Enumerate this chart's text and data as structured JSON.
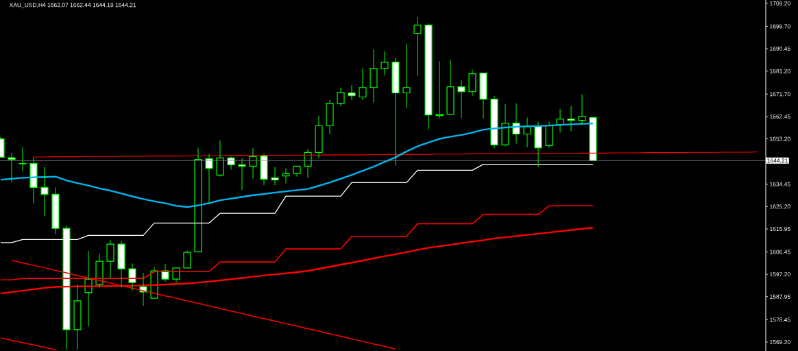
{
  "chart_data": {
    "type": "candlestick",
    "title": "XAU_USD,H4  1662.07 1662.44 1644.19 1644.21",
    "categories": [
      null,
      null,
      null,
      null,
      null,
      null,
      null,
      null,
      null,
      null,
      null,
      null,
      null,
      null,
      null,
      null,
      null,
      null,
      null,
      null,
      null,
      null,
      null,
      null,
      null,
      null,
      null,
      null,
      null,
      null,
      null,
      null,
      null,
      null,
      null,
      null,
      null,
      null,
      null,
      null,
      null,
      null,
      null,
      null,
      null,
      null,
      null,
      null,
      null,
      null,
      null,
      null,
      null,
      null,
      null,
      null,
      null,
      null,
      null,
      null,
      null,
      null,
      null,
      null,
      null,
      null,
      null,
      null,
      null,
      null
    ],
    "color": "#00ff00",
    "ohlc": [
      [
        1653.2,
        1654.0,
        1645.3,
        1645.6
      ],
      [
        1645.4,
        1647.3,
        1635.4,
        1644.7
      ],
      [
        1642.9,
        1649.8,
        1639.9,
        1643.0
      ],
      [
        1643.0,
        1645.6,
        1626.6,
        1633.1
      ],
      [
        1633.1,
        1641.6,
        1621.3,
        1630.3
      ],
      [
        1630.3,
        1633.1,
        1613.9,
        1616.2
      ],
      [
        1616.2,
        1617.3,
        1566.0,
        1574.3
      ],
      [
        1574.3,
        1593.0,
        1566.0,
        1586.2
      ],
      [
        1589.6,
        1606.8,
        1575.7,
        1595.2
      ],
      [
        1593.0,
        1605.7,
        1591.8,
        1602.6
      ],
      [
        1602.6,
        1611.4,
        1595.5,
        1609.7
      ],
      [
        1609.7,
        1611.1,
        1591.8,
        1599.5
      ],
      [
        1599.5,
        1601.7,
        1590.4,
        1593.8
      ],
      [
        1592.1,
        1597.8,
        1584.2,
        1589.9
      ],
      [
        1587.3,
        1600.3,
        1587.0,
        1598.6
      ],
      [
        1598.6,
        1601.5,
        1594.1,
        1595.2
      ],
      [
        1595.2,
        1600.0,
        1593.8,
        1599.8
      ],
      [
        1599.8,
        1607.1,
        1599.5,
        1606.3
      ],
      [
        1606.5,
        1649.5,
        1606.3,
        1644.7
      ],
      [
        1645.0,
        1647.0,
        1626.6,
        1641.0
      ],
      [
        1638.2,
        1652.6,
        1637.6,
        1645.3
      ],
      [
        1645.3,
        1645.9,
        1640.5,
        1642.5
      ],
      [
        1642.5,
        1645.3,
        1632.0,
        1641.9
      ],
      [
        1641.9,
        1649.5,
        1636.8,
        1645.9
      ],
      [
        1646.1,
        1647.0,
        1634.0,
        1636.5
      ],
      [
        1637.1,
        1641.6,
        1634.0,
        1636.2
      ],
      [
        1637.9,
        1641.0,
        1634.8,
        1638.8
      ],
      [
        1638.8,
        1642.2,
        1637.6,
        1641.9
      ],
      [
        1641.9,
        1649.0,
        1637.1,
        1647.6
      ],
      [
        1647.6,
        1662.8,
        1645.3,
        1658.6
      ],
      [
        1658.6,
        1669.3,
        1655.2,
        1667.9
      ],
      [
        1667.9,
        1674.4,
        1666.8,
        1672.4
      ],
      [
        1672.2,
        1675.5,
        1669.3,
        1671.0
      ],
      [
        1670.5,
        1682.3,
        1669.3,
        1674.4
      ],
      [
        1674.4,
        1690.3,
        1668.2,
        1682.3
      ],
      [
        1682.3,
        1689.4,
        1679.5,
        1684.9
      ],
      [
        1684.9,
        1686.6,
        1642.2,
        1672.2
      ],
      [
        1672.2,
        1692.5,
        1665.9,
        1674.4
      ],
      [
        1696.8,
        1703.5,
        1679.2,
        1700.2
      ],
      [
        1700.2,
        1701.0,
        1657.2,
        1663.1
      ],
      [
        1662.8,
        1685.4,
        1661.7,
        1663.4
      ],
      [
        1663.4,
        1686.0,
        1663.1,
        1674.7
      ],
      [
        1674.7,
        1677.5,
        1661.7,
        1672.7
      ],
      [
        1672.7,
        1681.8,
        1671.0,
        1680.1
      ],
      [
        1680.4,
        1680.6,
        1661.7,
        1669.6
      ],
      [
        1669.6,
        1671.0,
        1649.2,
        1650.7
      ],
      [
        1650.7,
        1667.6,
        1650.1,
        1659.7
      ],
      [
        1659.7,
        1667.9,
        1651.2,
        1655.2
      ],
      [
        1655.2,
        1662.0,
        1649.8,
        1658.3
      ],
      [
        1658.6,
        1660.3,
        1641.6,
        1649.5
      ],
      [
        1650.4,
        1660.3,
        1649.5,
        1658.6
      ],
      [
        1659.1,
        1665.6,
        1655.8,
        1661.4
      ],
      [
        1661.4,
        1666.8,
        1656.3,
        1660.8
      ],
      [
        1660.8,
        1671.6,
        1658.9,
        1662.5
      ],
      [
        1662.07,
        1662.44,
        1644.19,
        1644.21
      ],
      null,
      null,
      null,
      null,
      null,
      null,
      null,
      null,
      null,
      null,
      null,
      null,
      null,
      null,
      null
    ],
    "series": [
      {
        "type": "line",
        "color": "#ff0000",
        "values": [
          null,
          null,
          null,
          1645.7,
          1645.7,
          1645.8,
          1645.8,
          1645.8,
          1645.9,
          1645.9,
          1645.9,
          1646.0,
          1646.0,
          1646.0,
          1646.1,
          1646.1,
          1646.1,
          1646.2,
          1646.2,
          1646.2,
          1646.2,
          1646.3,
          1646.3,
          1646.3,
          1646.4,
          1646.4,
          1646.4,
          1646.5,
          1646.5,
          1646.5,
          1646.6,
          1646.6,
          1646.6,
          1646.6,
          1646.7,
          1646.7,
          1646.7,
          1646.8,
          1646.8,
          1646.8,
          1646.9,
          1646.9,
          1646.9,
          1647.0,
          1647.0,
          1647.0,
          1647.0,
          1647.1,
          1647.1,
          1647.1,
          1647.2,
          1647.2,
          1647.2,
          1647.3,
          1647.3,
          1647.3,
          1647.4,
          1647.4,
          1647.4,
          1647.5,
          1647.5,
          1647.5,
          1647.5,
          1647.6,
          1647.6,
          1647.6,
          1647.7,
          1647.7,
          1647.7,
          1647.8
        ]
      },
      {
        "type": "line",
        "color": "#00b4f0",
        "values": [
          1636.3,
          1636.7,
          1637.1,
          1637.3,
          1637.4,
          1637.6,
          1636.0,
          1634.9,
          1633.9,
          1632.7,
          1631.8,
          1630.6,
          1629.4,
          1628.3,
          1627.4,
          1626.6,
          1625.5,
          1625.0,
          1625.7,
          1626.6,
          1627.8,
          1628.5,
          1629.2,
          1629.9,
          1630.4,
          1631.0,
          1631.5,
          1632.0,
          1632.5,
          1633.8,
          1635.2,
          1636.7,
          1638.3,
          1640.0,
          1641.7,
          1643.7,
          1645.6,
          1648.0,
          1650.1,
          1651.7,
          1653.2,
          1654.1,
          1654.8,
          1655.8,
          1657.0,
          1657.5,
          1657.9,
          1658.2,
          1658.4,
          1658.5,
          1658.7,
          1659.0,
          1659.2,
          1659.4,
          1659.6,
          null,
          null,
          null,
          null,
          null,
          null,
          null,
          null,
          null,
          null,
          null,
          null,
          null,
          null,
          null
        ]
      },
      {
        "type": "line",
        "color": "#ffffff",
        "values": [
          1610.3,
          1610.3,
          1611.6,
          1611.6,
          1611.6,
          1611.6,
          1611.6,
          1611.6,
          1613.3,
          1613.3,
          1613.3,
          1613.3,
          1613.3,
          1613.3,
          1618.4,
          1618.4,
          1618.4,
          1618.4,
          1618.4,
          1618.4,
          1622.4,
          1622.4,
          1622.4,
          1622.4,
          1622.4,
          1622.4,
          1629.5,
          1629.5,
          1629.5,
          1629.5,
          1629.5,
          1629.5,
          1635.1,
          1635.1,
          1635.1,
          1635.1,
          1635.1,
          1635.1,
          1640.2,
          1640.2,
          1640.2,
          1640.2,
          1640.2,
          1640.2,
          1642.7,
          1642.7,
          1642.7,
          1642.7,
          1642.7,
          1642.7,
          1642.7,
          1642.7,
          1642.7,
          1642.7,
          1642.7,
          null,
          null,
          null,
          null,
          null,
          null,
          null,
          null,
          null,
          null,
          null,
          null,
          null,
          null,
          null
        ]
      },
      {
        "type": "line",
        "color": "#ff0000",
        "values": [
          1594.9,
          1594.9,
          1595.5,
          1595.5,
          1595.5,
          1595.5,
          1595.5,
          1595.5,
          1595.5,
          1595.5,
          1595.5,
          1595.5,
          1595.5,
          1595.5,
          1598.3,
          1598.3,
          1598.3,
          1598.3,
          1598.3,
          1598.3,
          1602.3,
          1602.3,
          1602.3,
          1602.3,
          1602.3,
          1602.3,
          1607.7,
          1607.7,
          1607.7,
          1607.7,
          1607.7,
          1607.7,
          1612.9,
          1612.9,
          1612.9,
          1612.9,
          1612.9,
          1612.9,
          1618.1,
          1618.1,
          1618.1,
          1618.1,
          1618.1,
          1618.1,
          1622.0,
          1622.0,
          1622.0,
          1622.0,
          1622.0,
          1622.0,
          1625.5,
          1625.5,
          1625.5,
          1625.5,
          1625.5,
          null,
          null,
          null,
          null,
          null,
          null,
          null,
          null,
          null,
          null,
          null,
          null,
          null,
          null,
          null
        ]
      },
      {
        "type": "line",
        "color": "#ff0000",
        "values": [
          1589.3,
          1589.9,
          1590.4,
          1591.0,
          1591.6,
          1592.0,
          1592.1,
          1592.2,
          1592.2,
          1592.3,
          1592.3,
          1592.4,
          1592.5,
          1592.6,
          1592.8,
          1593.0,
          1593.2,
          1593.4,
          1593.8,
          1594.2,
          1594.7,
          1595.2,
          1595.7,
          1596.2,
          1596.7,
          1597.2,
          1597.6,
          1598.1,
          1598.6,
          1599.5,
          1600.3,
          1601.2,
          1602.0,
          1602.9,
          1603.8,
          1604.7,
          1605.5,
          1606.4,
          1607.3,
          1608.2,
          1608.8,
          1609.4,
          1610.1,
          1610.7,
          1611.3,
          1612.0,
          1612.5,
          1613.0,
          1613.5,
          1614.0,
          1614.5,
          1615.0,
          1615.5,
          1616.0,
          1616.5,
          null,
          null,
          null,
          null,
          null,
          null,
          null,
          null,
          null,
          null,
          null,
          null,
          null,
          null,
          null
        ]
      },
      {
        "type": "line",
        "color": "#ff0000",
        "values": [
          null,
          1603.0,
          1601.9,
          1600.9,
          1599.9,
          1598.8,
          1597.8,
          1596.7,
          1595.7,
          1594.6,
          1593.6,
          1592.5,
          1591.5,
          1590.4,
          1589.4,
          1588.3,
          1587.3,
          1586.2,
          1585.2,
          1584.1,
          1583.1,
          1582.0,
          1581.0,
          1579.9,
          1578.9,
          1577.8,
          1576.8,
          1575.8,
          1574.7,
          1573.7,
          1572.6,
          1571.6,
          1570.5,
          1569.5,
          1568.4,
          1567.4,
          1566.3,
          null,
          null,
          null,
          null,
          null,
          null,
          null,
          null,
          null,
          null,
          null,
          null,
          null,
          null,
          null,
          null,
          null,
          null,
          null,
          null,
          null,
          null,
          null,
          null,
          null,
          null,
          null,
          null,
          null,
          null,
          null,
          null,
          null
        ]
      },
      {
        "type": "line",
        "color": "#ff0000",
        "values": [
          1570.9,
          1569.9,
          1569.0,
          1568.0,
          1567.0,
          1566.0,
          null,
          null,
          null,
          null,
          null,
          null,
          null,
          null,
          null,
          null,
          null,
          null,
          null,
          null,
          null,
          null,
          null,
          null,
          null,
          null,
          null,
          null,
          null,
          null,
          null,
          null,
          null,
          null,
          null,
          null,
          null,
          null,
          null,
          null,
          null,
          null,
          null,
          null,
          null,
          null,
          null,
          null,
          null,
          null,
          null,
          null,
          null,
          null,
          null,
          null,
          null,
          null,
          null,
          null,
          null,
          null,
          null,
          null,
          null,
          null,
          null,
          null,
          null,
          null
        ]
      }
    ],
    "ylim": [
      1565.5,
      1710.6
    ],
    "yticks": [
      {
        "value": 1709.2,
        "label": "1709.20"
      },
      {
        "value": 1699.7,
        "label": "1699.70"
      },
      {
        "value": 1690.45,
        "label": "1690.45"
      },
      {
        "value": 1681.2,
        "label": "1681.20"
      },
      {
        "value": 1671.7,
        "label": "1671.70"
      },
      {
        "value": 1662.45,
        "label": "1662.45"
      },
      {
        "value": 1653.2,
        "label": "1653.20"
      },
      {
        "value": 1634.45,
        "label": "1634.45"
      },
      {
        "value": 1625.2,
        "label": "1625.20"
      },
      {
        "value": 1615.95,
        "label": "1615.95"
      },
      {
        "value": 1606.45,
        "label": "1606.45"
      },
      {
        "value": 1597.2,
        "label": "1597.20"
      },
      {
        "value": 1587.95,
        "label": "1587.95"
      },
      {
        "value": 1578.45,
        "label": "1578.45"
      },
      {
        "value": 1569.2,
        "label": "1569.20"
      }
    ],
    "ref_lines": [
      {
        "axis": "y",
        "value": 1644.21,
        "label": "1644.21",
        "color": "#7f8c9c"
      }
    ],
    "tick_labels": "y",
    "grid": false
  }
}
